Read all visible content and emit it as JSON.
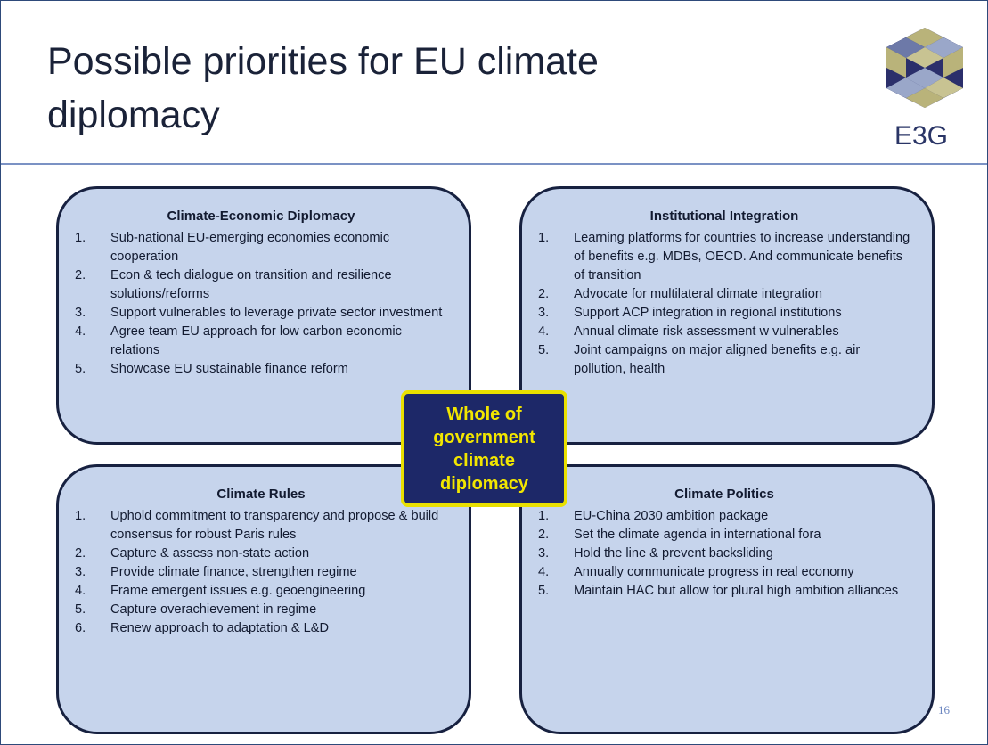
{
  "header": {
    "title": "Possible priorities for EU climate diplomacy",
    "logo_text": "E3G"
  },
  "quadrants": [
    {
      "heading": "Climate-Economic Diplomacy",
      "items": [
        {
          "number": "1.",
          "text": "Sub-national EU-emerging economies economic cooperation"
        },
        {
          "number": "2.",
          "text": "Econ & tech dialogue on transition and resilience solutions/reforms"
        },
        {
          "number": "3.",
          "text": "Support vulnerables to leverage private sector investment"
        },
        {
          "number": "4.",
          "text": "Agree team EU approach for low carbon economic relations"
        },
        {
          "number": "5.",
          "text": "Showcase EU sustainable finance reform"
        }
      ]
    },
    {
      "heading": "Institutional Integration",
      "items": [
        {
          "number": "1.",
          "text": "Learning platforms for countries to increase understanding of benefits e.g. MDBs, OECD. And communicate benefits of transition"
        },
        {
          "number": "2.",
          "text": "Advocate for multilateral climate integration"
        },
        {
          "number": "3.",
          "text": "Support ACP integration in regional institutions"
        },
        {
          "number": "4.",
          "text": "Annual climate risk assessment w vulnerables"
        },
        {
          "number": "5.",
          "text": "Joint campaigns on major aligned benefits e.g. air pollution, health"
        }
      ]
    },
    {
      "heading": "Climate Rules",
      "items": [
        {
          "number": "1.",
          "text": "Uphold commitment to transparency and propose & build consensus for robust Paris rules"
        },
        {
          "number": "2.",
          "text": "Capture & assess non-state action"
        },
        {
          "number": "3.",
          "text": "Provide climate finance, strengthen regime"
        },
        {
          "number": "4.",
          "text": "Frame emergent issues e.g. geoengineering"
        },
        {
          "number": "5.",
          "text": "Capture overachievement in regime"
        },
        {
          "number": "6.",
          "text": "Renew approach to adaptation & L&D"
        }
      ]
    },
    {
      "heading": "Climate Politics",
      "items": [
        {
          "number": "1.",
          "text": "EU-China 2030 ambition package"
        },
        {
          "number": "2.",
          "text": "Set the climate agenda in international fora"
        },
        {
          "number": "3.",
          "text": "Hold the line & prevent backsliding"
        },
        {
          "number": "4.",
          "text": "Annually communicate progress in real economy"
        },
        {
          "number": "5.",
          "text": "Maintain HAC but allow for plural high ambition alliances"
        }
      ]
    }
  ],
  "center": "Whole of government climate diplomacy",
  "page_number": "16"
}
